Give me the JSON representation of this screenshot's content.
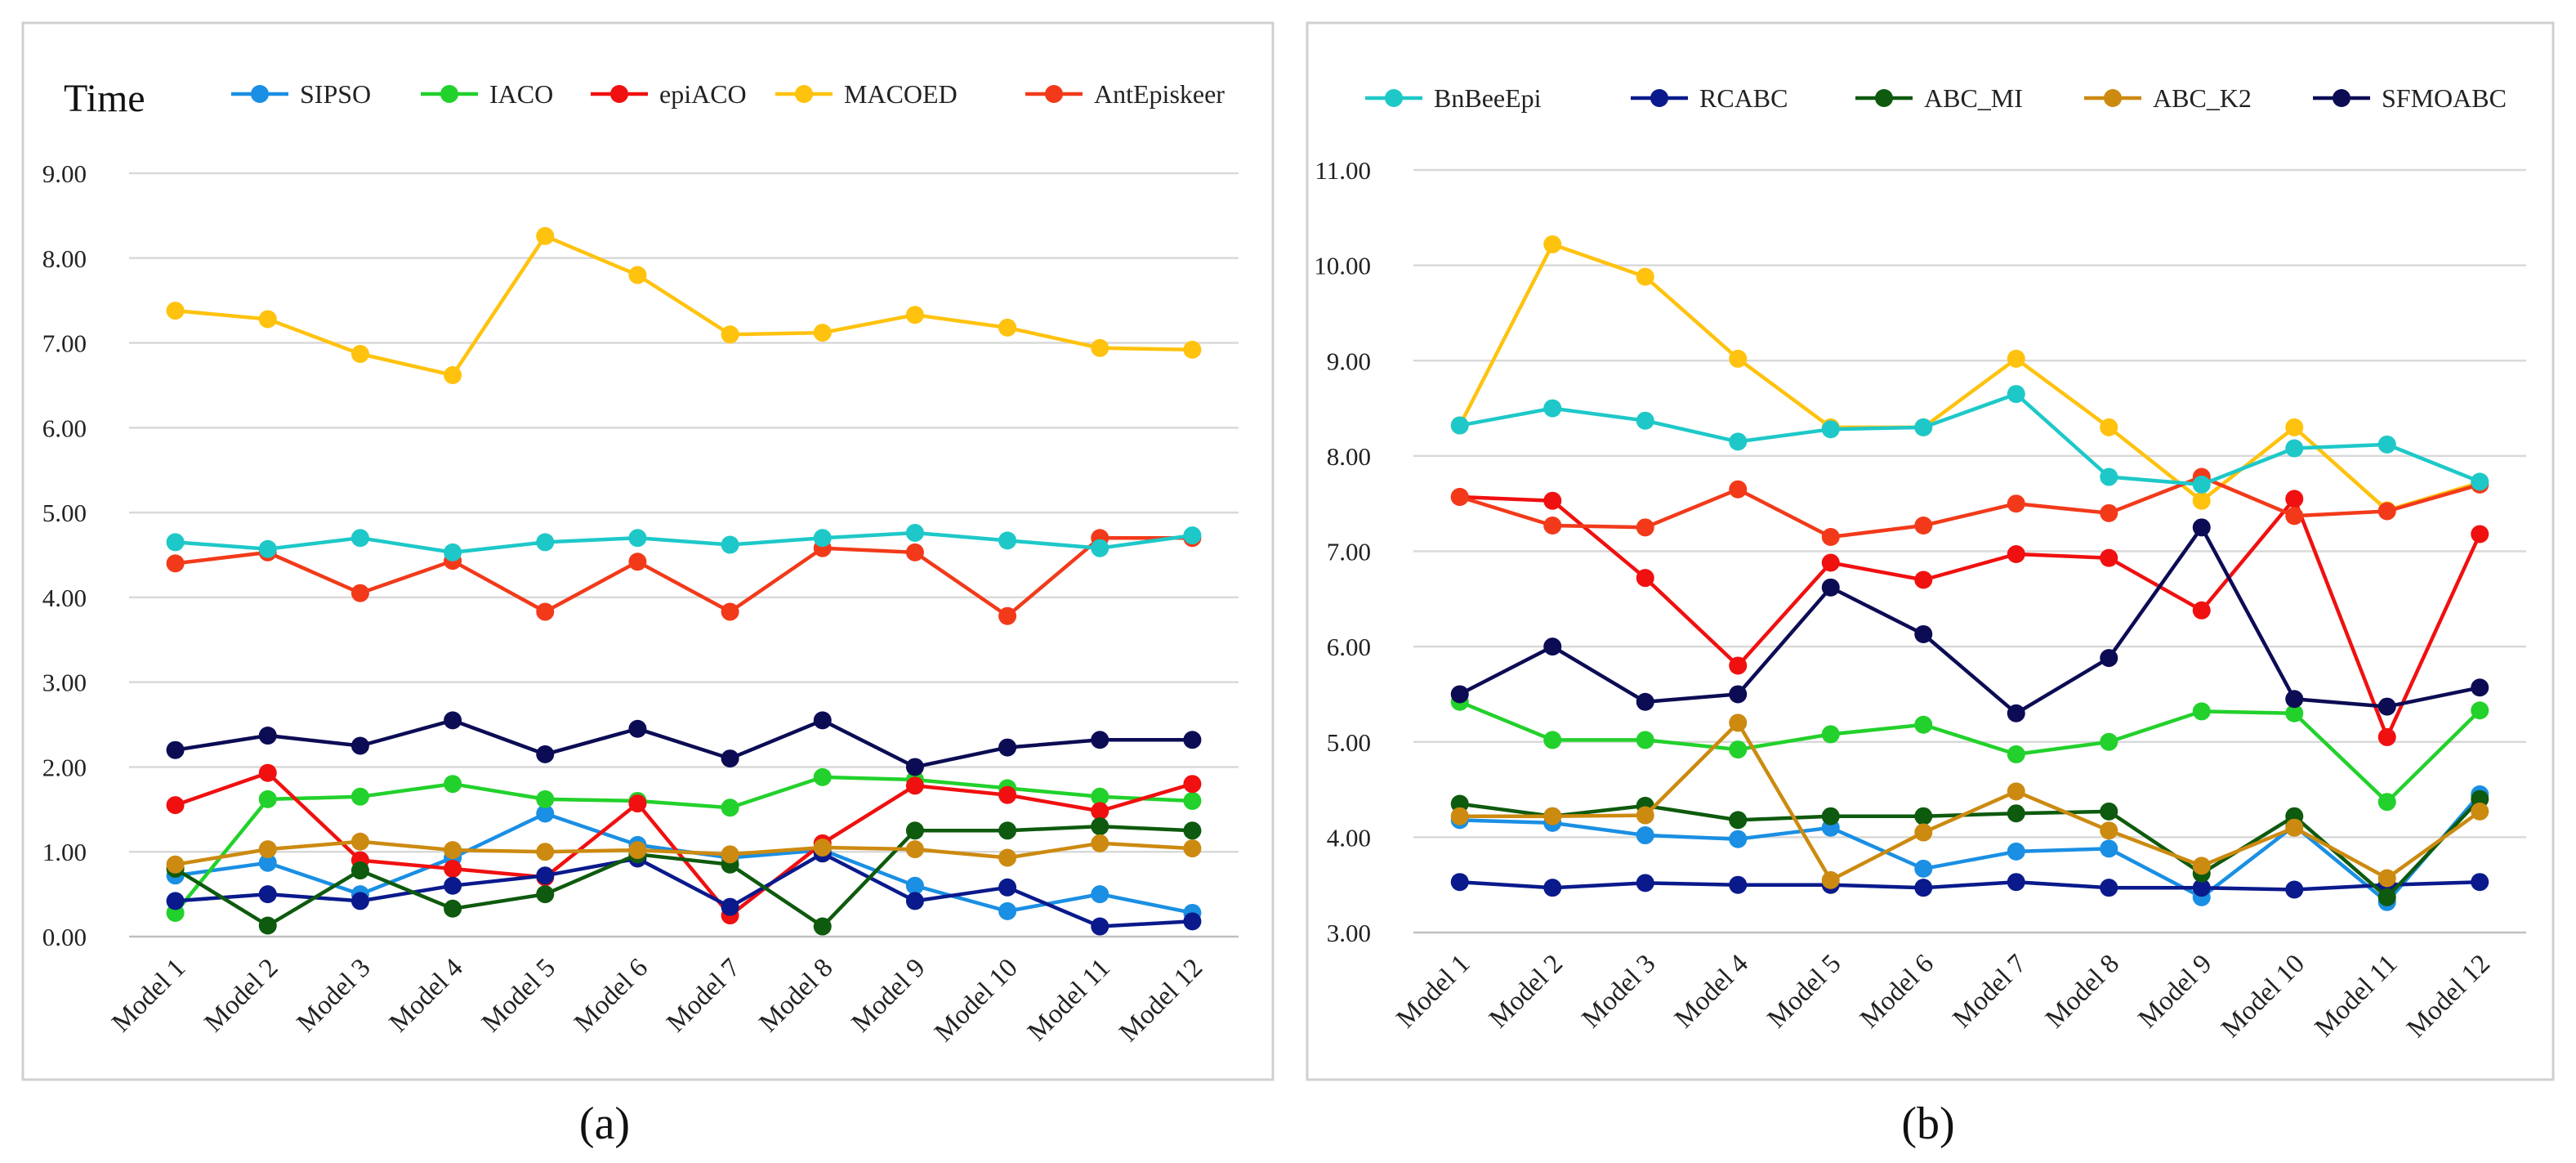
{
  "chart_data": [
    {
      "type": "line",
      "panel_label": "(a)",
      "title": "Time",
      "xlabel": "",
      "ylabel": "",
      "ylim": [
        0,
        9
      ],
      "ytick_step": 1,
      "ytick_labels": [
        "0.00",
        "1.00",
        "2.00",
        "3.00",
        "4.00",
        "5.00",
        "6.00",
        "7.00",
        "8.00",
        "9.00"
      ],
      "grid": true,
      "legend_position": "top",
      "categories": [
        "Model 1",
        "Model 2",
        "Model 3",
        "Model 4",
        "Model 5",
        "Model 6",
        "Model 7",
        "Model 8",
        "Model 9",
        "Model 10",
        "Model 11",
        "Model 12"
      ],
      "legend": [
        {
          "name": "SIPSO",
          "color": "#1a8fe3"
        },
        {
          "name": "IACO",
          "color": "#22d12b"
        },
        {
          "name": "epiACO",
          "color": "#f01010"
        },
        {
          "name": "MACOED",
          "color": "#ffc20e"
        },
        {
          "name": "AntEpiskeer",
          "color": "#f23a1a"
        }
      ],
      "series": [
        {
          "name": "SIPSO",
          "color": "#1a8fe3",
          "values": [
            0.72,
            0.87,
            0.5,
            0.93,
            1.45,
            1.08,
            0.93,
            1.02,
            0.6,
            0.3,
            0.5,
            0.28
          ]
        },
        {
          "name": "IACO",
          "color": "#22d12b",
          "values": [
            0.28,
            1.62,
            1.65,
            1.8,
            1.62,
            1.6,
            1.52,
            1.88,
            1.85,
            1.75,
            1.65,
            1.6
          ]
        },
        {
          "name": "epiACO",
          "color": "#f01010",
          "values": [
            1.55,
            1.93,
            0.9,
            0.8,
            0.7,
            1.57,
            0.25,
            1.1,
            1.78,
            1.67,
            1.48,
            1.8
          ]
        },
        {
          "name": "MACOED",
          "color": "#ffc20e",
          "values": [
            7.38,
            7.28,
            6.87,
            6.62,
            8.26,
            7.8,
            7.1,
            7.12,
            7.33,
            7.18,
            6.94,
            6.92
          ]
        },
        {
          "name": "AntEpiskeer",
          "color": "#f23a1a",
          "values": [
            4.4,
            4.53,
            4.05,
            4.43,
            3.83,
            4.42,
            3.83,
            4.58,
            4.53,
            3.78,
            4.7,
            4.7
          ]
        },
        {
          "color": "#1ec8c8",
          "values": [
            4.65,
            4.57,
            4.7,
            4.53,
            4.65,
            4.7,
            4.62,
            4.7,
            4.76,
            4.67,
            4.58,
            4.73
          ]
        },
        {
          "color": "#0a1a8c",
          "values": [
            0.42,
            0.5,
            0.42,
            0.6,
            0.72,
            0.92,
            0.35,
            0.98,
            0.42,
            0.58,
            0.12,
            0.18
          ]
        },
        {
          "color": "#0e5a0e",
          "values": [
            0.8,
            0.13,
            0.78,
            0.33,
            0.5,
            0.97,
            0.85,
            0.12,
            1.25,
            1.25,
            1.3,
            1.25
          ]
        },
        {
          "color": "#cc8a10",
          "values": [
            0.85,
            1.03,
            1.12,
            1.02,
            1.0,
            1.02,
            0.97,
            1.05,
            1.03,
            0.93,
            1.1,
            1.04
          ]
        },
        {
          "color": "#0c0c55",
          "values": [
            2.2,
            2.37,
            2.25,
            2.55,
            2.15,
            2.45,
            2.1,
            2.55,
            2.0,
            2.23,
            2.32,
            2.32
          ]
        }
      ]
    },
    {
      "type": "line",
      "panel_label": "(b)",
      "title": "",
      "xlabel": "",
      "ylabel": "",
      "ylim": [
        3,
        11
      ],
      "ytick_step": 1,
      "ytick_labels": [
        "3.00",
        "4.00",
        "5.00",
        "6.00",
        "7.00",
        "8.00",
        "9.00",
        "10.00",
        "11.00"
      ],
      "grid": true,
      "legend_position": "top",
      "categories": [
        "Model 1",
        "Model 2",
        "Model 3",
        "Model 4",
        "Model 5",
        "Model 6",
        "Model 7",
        "Model 8",
        "Model 9",
        "Model 10",
        "Model 11",
        "Model 12"
      ],
      "legend": [
        {
          "name": "BnBeeEpi",
          "color": "#1ec8c8"
        },
        {
          "name": "RCABC",
          "color": "#0a1a8c"
        },
        {
          "name": "ABC_MI",
          "color": "#0e5a0e"
        },
        {
          "name": "ABC_K2",
          "color": "#cc8a10"
        },
        {
          "name": "SFMOABC",
          "color": "#0c0c55"
        }
      ],
      "series": [
        {
          "color": "#1a8fe3",
          "values": [
            4.18,
            4.15,
            4.02,
            3.98,
            4.1,
            3.67,
            3.85,
            3.88,
            3.37,
            4.12,
            3.32,
            4.45
          ]
        },
        {
          "color": "#22d12b",
          "values": [
            5.42,
            5.02,
            5.02,
            4.92,
            5.08,
            5.18,
            4.87,
            5.0,
            5.32,
            5.3,
            4.37,
            5.33
          ]
        },
        {
          "color": "#f01010",
          "values": [
            7.57,
            7.53,
            6.72,
            5.8,
            6.88,
            6.7,
            6.97,
            6.93,
            6.38,
            7.55,
            5.05,
            7.18
          ]
        },
        {
          "color": "#ffc20e",
          "values": [
            8.32,
            10.22,
            9.88,
            9.02,
            8.3,
            8.3,
            9.02,
            8.3,
            7.53,
            8.3,
            7.43,
            7.72
          ]
        },
        {
          "color": "#f23a1a",
          "values": [
            7.57,
            7.27,
            7.25,
            7.65,
            7.15,
            7.27,
            7.5,
            7.4,
            7.78,
            7.37,
            7.42,
            7.7
          ]
        },
        {
          "name": "BnBeeEpi",
          "color": "#1ec8c8",
          "values": [
            8.32,
            8.5,
            8.37,
            8.15,
            8.28,
            8.3,
            8.65,
            7.78,
            7.7,
            8.08,
            8.12,
            7.73
          ]
        },
        {
          "name": "RCABC",
          "color": "#0a1a8c",
          "values": [
            3.53,
            3.47,
            3.52,
            3.5,
            3.5,
            3.47,
            3.53,
            3.47,
            3.47,
            3.45,
            3.5,
            3.53
          ]
        },
        {
          "name": "ABC_MI",
          "color": "#0e5a0e",
          "values": [
            4.35,
            4.22,
            4.33,
            4.18,
            4.22,
            4.22,
            4.25,
            4.27,
            3.62,
            4.22,
            3.37,
            4.4
          ]
        },
        {
          "name": "ABC_K2",
          "color": "#cc8a10",
          "values": [
            4.22,
            4.22,
            4.23,
            5.2,
            3.55,
            4.05,
            4.48,
            4.07,
            3.7,
            4.1,
            3.57,
            4.27
          ]
        },
        {
          "name": "SFMOABC",
          "color": "#0c0c55",
          "values": [
            5.5,
            6.0,
            5.42,
            5.5,
            6.62,
            6.13,
            5.3,
            5.88,
            7.25,
            5.45,
            5.37,
            5.57
          ]
        }
      ]
    }
  ]
}
